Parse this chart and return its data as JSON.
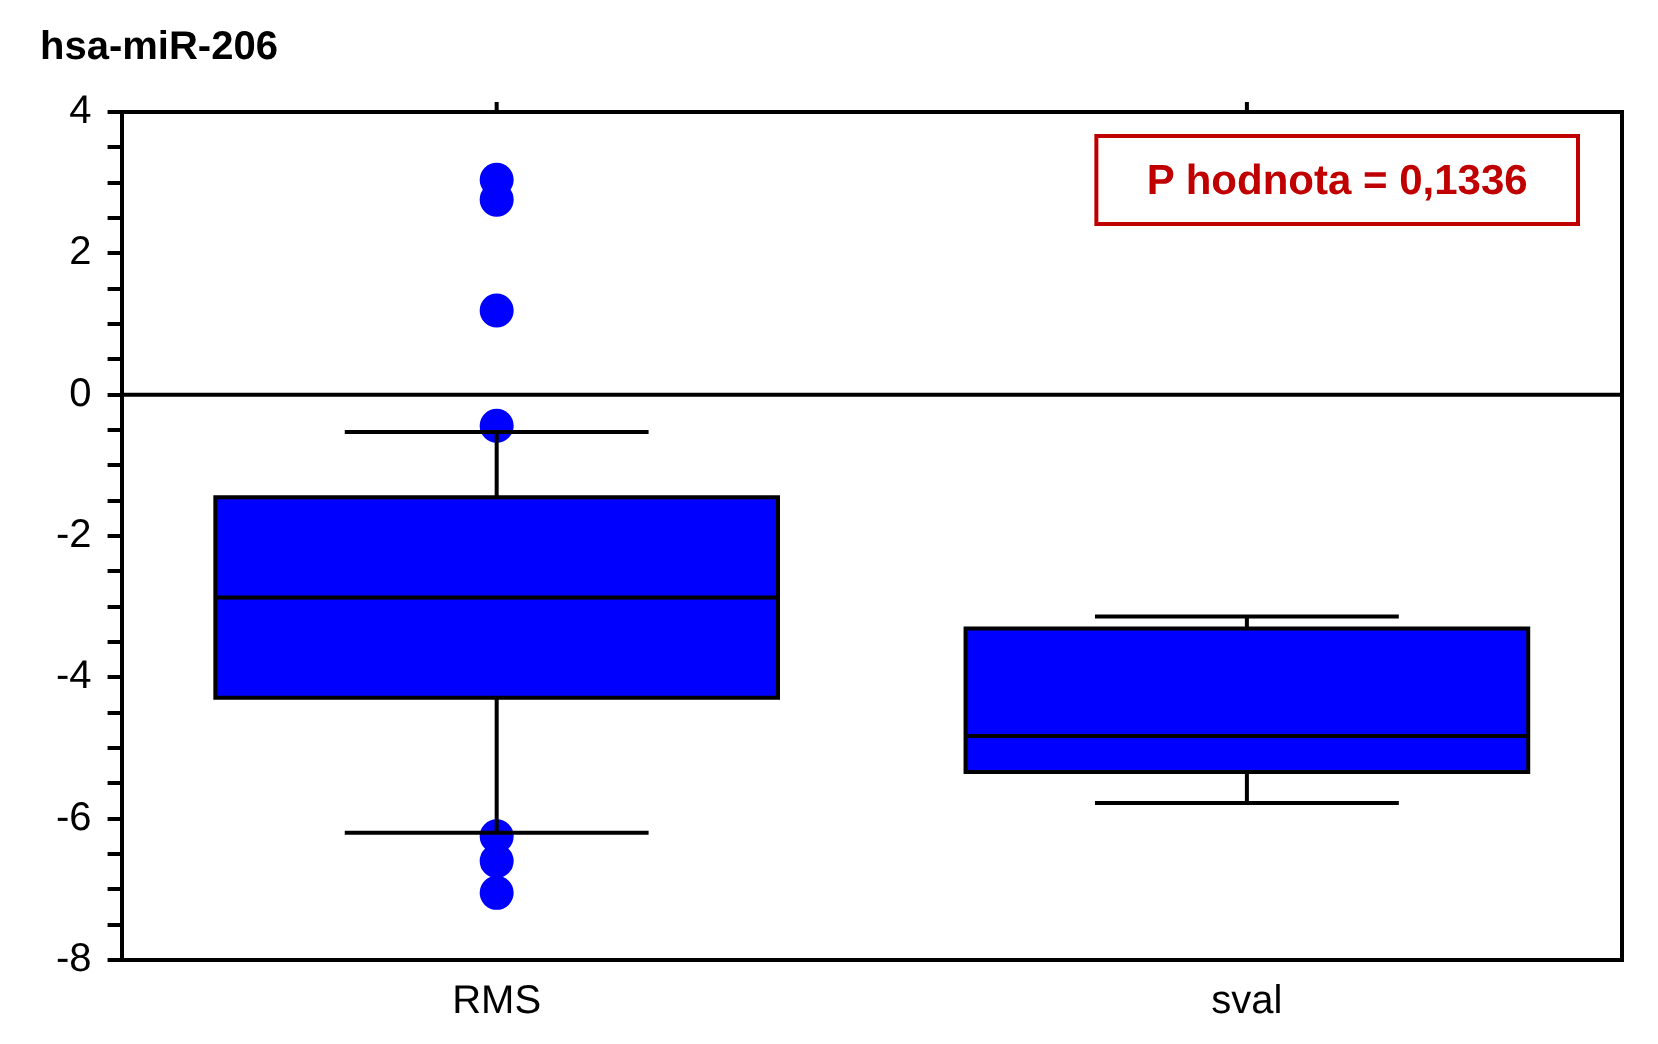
{
  "chart_data": {
    "type": "box",
    "title": "hsa-miR-206",
    "categories": [
      "RMS",
      "sval"
    ],
    "color": "#0000ff",
    "boxes": [
      {
        "low": -6.2,
        "q1": -4.29,
        "median": -2.87,
        "q3": -1.45,
        "high": -0.53,
        "outliers": [
          3.04,
          2.76,
          1.19,
          -0.44,
          -6.25,
          -6.6,
          -7.05
        ]
      },
      {
        "low": -5.78,
        "q1": -5.34,
        "median": -4.83,
        "q3": -3.31,
        "high": -3.14
      }
    ],
    "ylim": [
      -8,
      4
    ],
    "yticks": [
      -8,
      {
        "value": -7.5,
        "label": null
      },
      {
        "value": -7,
        "label": null
      },
      {
        "value": -6.5,
        "label": null
      },
      -6,
      {
        "value": -5.5,
        "label": null
      },
      {
        "value": -5,
        "label": null
      },
      {
        "value": -4.5,
        "label": null
      },
      -4,
      {
        "value": -3.5,
        "label": null
      },
      {
        "value": -3,
        "label": null
      },
      {
        "value": -2.5,
        "label": null
      },
      -2,
      {
        "value": -1.5,
        "label": null
      },
      {
        "value": -1,
        "label": null
      },
      {
        "value": -0.5,
        "label": null
      },
      0,
      {
        "value": 0.5,
        "label": null
      },
      {
        "value": 1,
        "label": null
      },
      {
        "value": 1.5,
        "label": null
      },
      2,
      {
        "value": 2.5,
        "label": null
      },
      {
        "value": 3,
        "label": null
      },
      {
        "value": 3.5,
        "label": null
      },
      4
    ],
    "ref_lines": [
      {
        "axis": "y",
        "value": 0,
        "color": "#000000"
      }
    ],
    "annotations": [
      "P hodnota = 0,1336"
    ],
    "grid": false,
    "legend": false,
    "marker": "circle"
  }
}
